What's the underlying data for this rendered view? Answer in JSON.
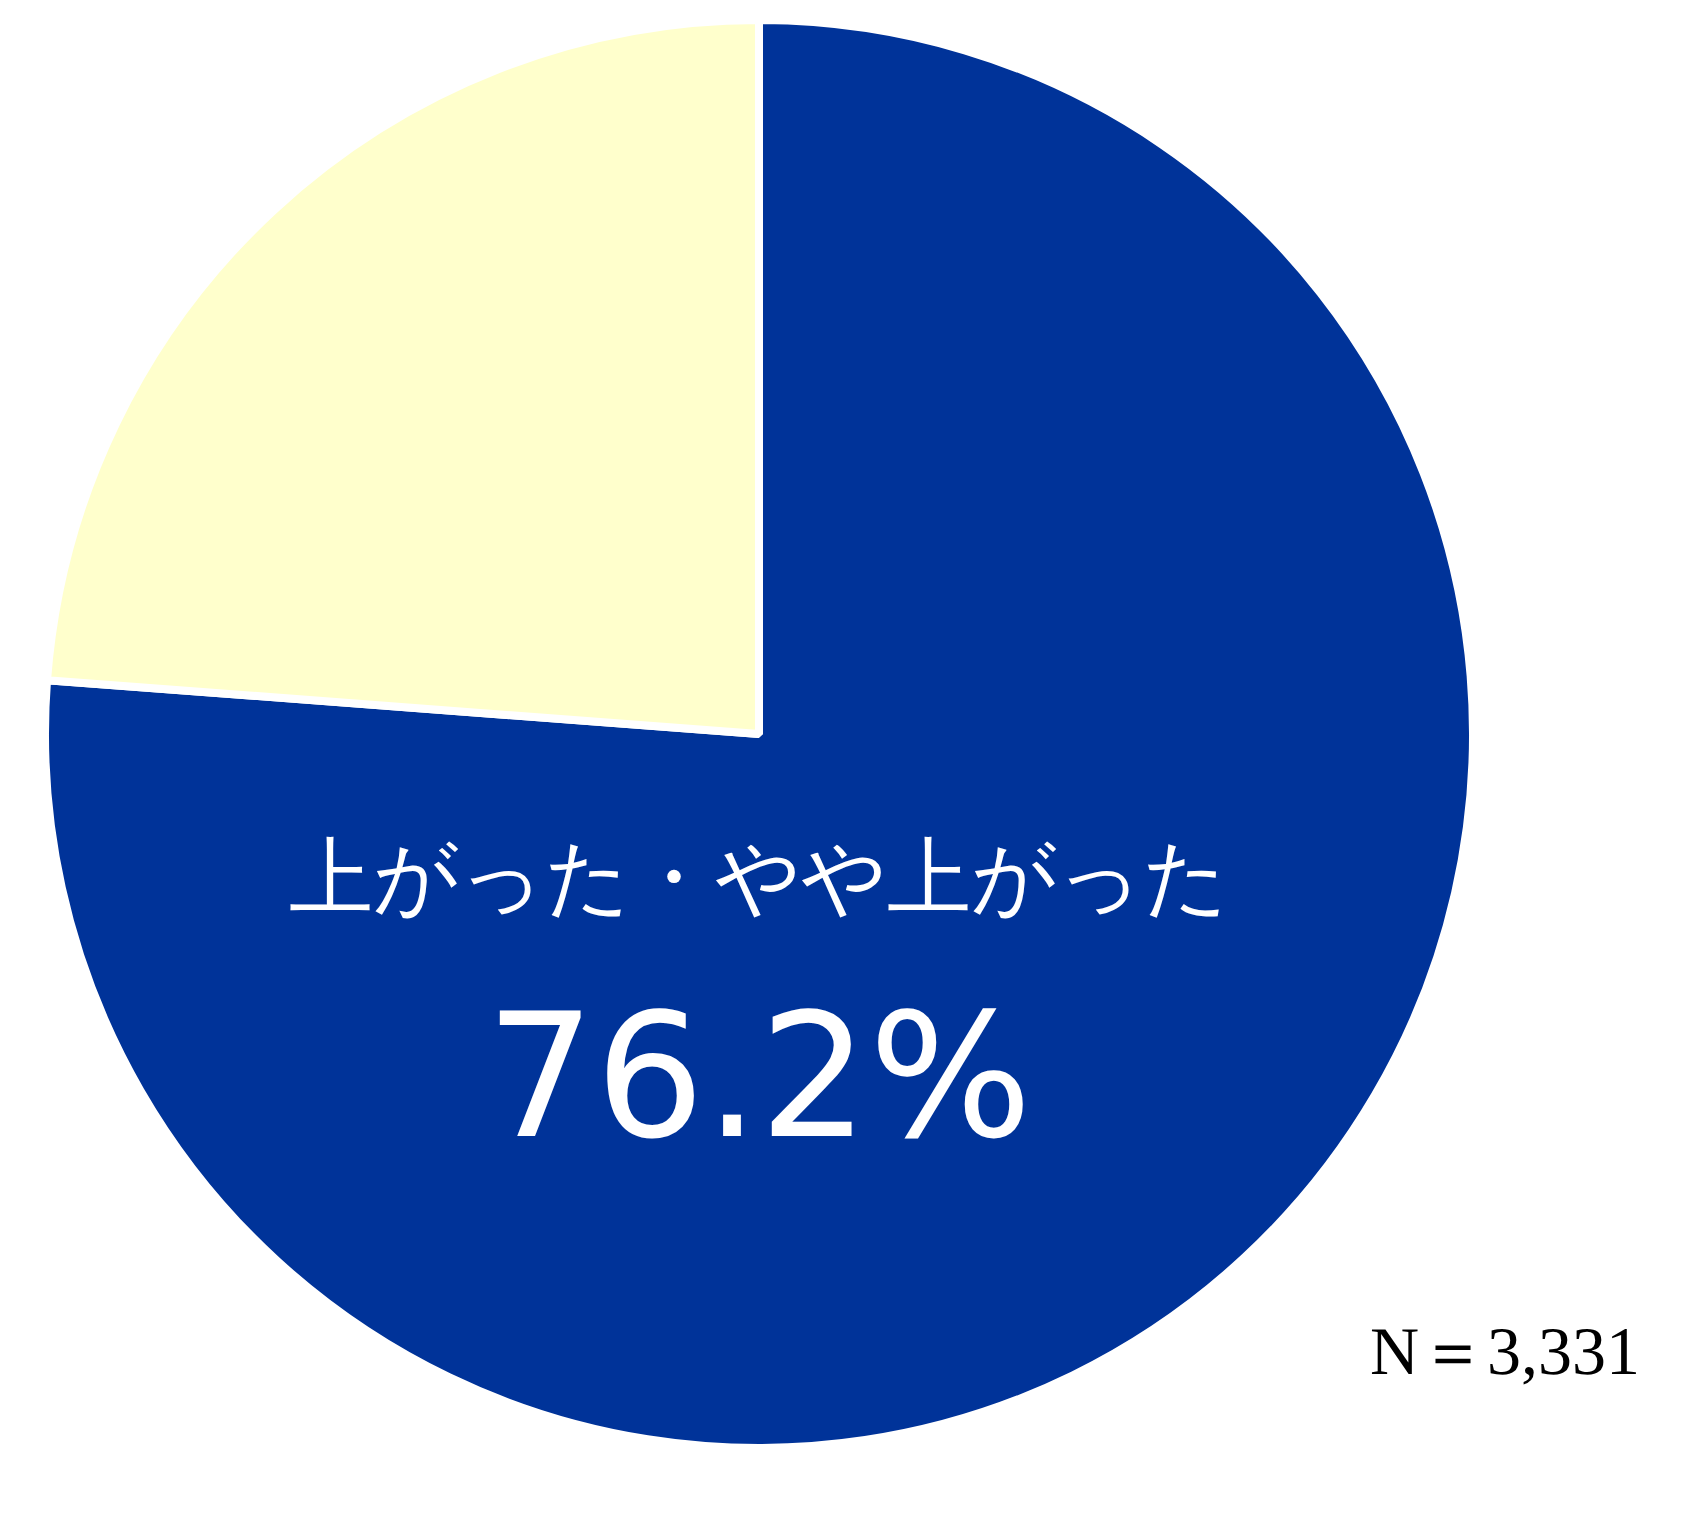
{
  "chart_data": {
    "type": "pie",
    "categories": [
      "上がった・やや上がった",
      null
    ],
    "values": [
      76.2,
      23.8
    ],
    "colors": [
      "#003399",
      "#ffffcc"
    ],
    "value_labels": [
      "76.2%",
      null
    ],
    "annotations": [
      "N＝3,331"
    ]
  }
}
